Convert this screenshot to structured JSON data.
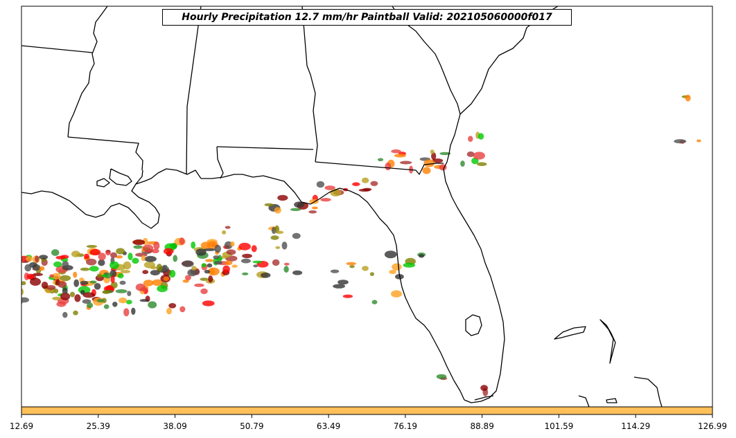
{
  "title": "Hourly Precipitation 12.7 mm/hr Paintball Valid: 202105060000f017",
  "colorbar": {
    "fill_color": "#ffc05a",
    "ticks": [
      "12.69",
      "25.39",
      "38.09",
      "50.79",
      "63.49",
      "76.19",
      "88.89",
      "101.59",
      "114.29",
      "126.99"
    ]
  },
  "colors": {
    "coastline": "#000000",
    "member_palette": [
      "#ff0000",
      "#ff7f00",
      "#00c800",
      "#2e8b2e",
      "#8b0000",
      "#808000",
      "#333333",
      "#e84040",
      "#b8a020",
      "#ffa020",
      "#a83232",
      "#505050"
    ]
  }
}
